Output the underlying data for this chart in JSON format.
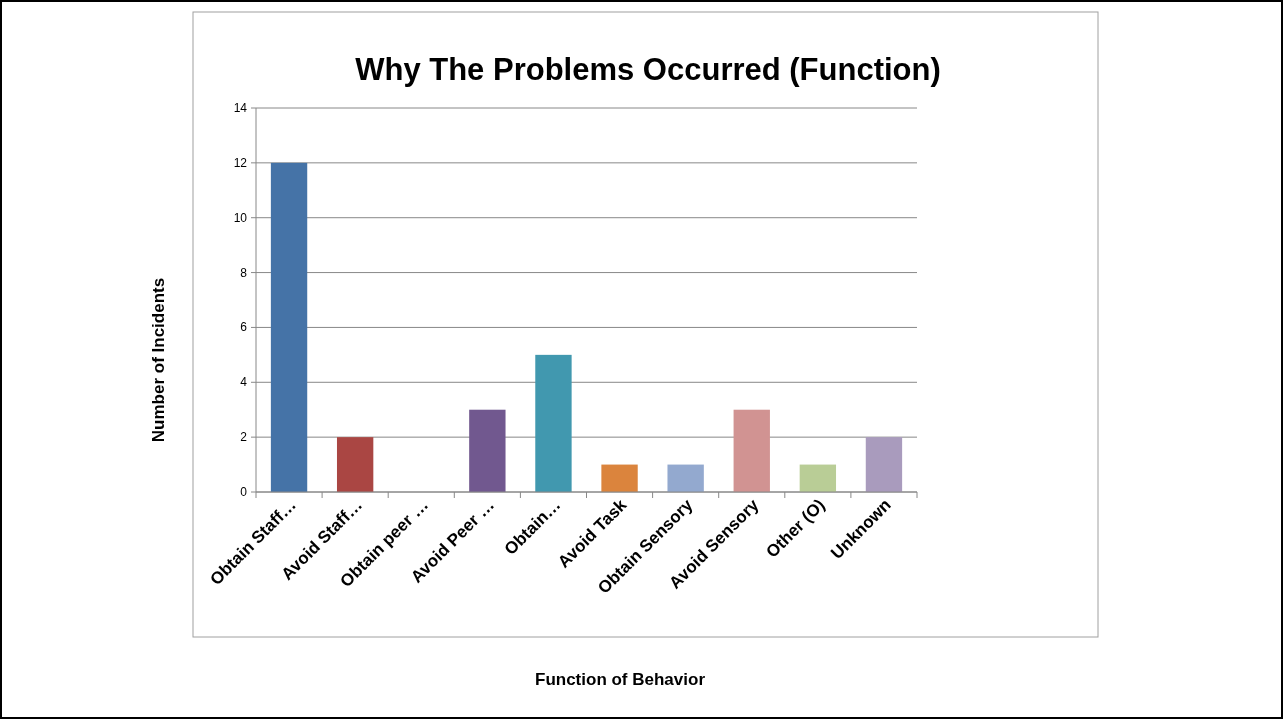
{
  "chart_data": {
    "type": "bar",
    "title": "Why The Problems Occurred (Function)",
    "xlabel": "Function of Behavior",
    "ylabel": "Number of Incidents",
    "categories": [
      "Obtain Staff…",
      "Avoid Staff…",
      "Obtain peer …",
      "Avoid Peer …",
      "Obtain…",
      "Avoid Task",
      "Obtain Sensory",
      "Avoid Sensory",
      "Other (O)",
      "Unknown"
    ],
    "values": [
      12,
      2,
      0,
      3,
      5,
      1,
      1,
      3,
      1,
      2
    ],
    "colors": [
      "#4573a7",
      "#aa4643",
      "#89a54e",
      "#71588f",
      "#4198af",
      "#db843d",
      "#93a9cf",
      "#d19392",
      "#b9cd96",
      "#a99bbd"
    ],
    "ylim": [
      0,
      14
    ],
    "yticks": [
      0,
      2,
      4,
      6,
      8,
      10,
      12,
      14
    ],
    "grid": "y"
  }
}
